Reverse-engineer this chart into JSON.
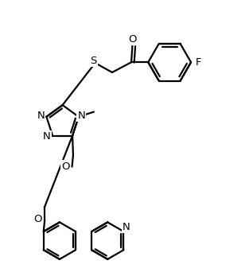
{
  "bg_color": "#ffffff",
  "line_color": "#000000",
  "line_width": 1.6,
  "font_size": 9.5,
  "figsize": [
    3.13,
    3.52
  ],
  "dpi": 100,
  "xlim": [
    -0.05,
    1.05
  ],
  "ylim": [
    -0.05,
    1.12
  ]
}
